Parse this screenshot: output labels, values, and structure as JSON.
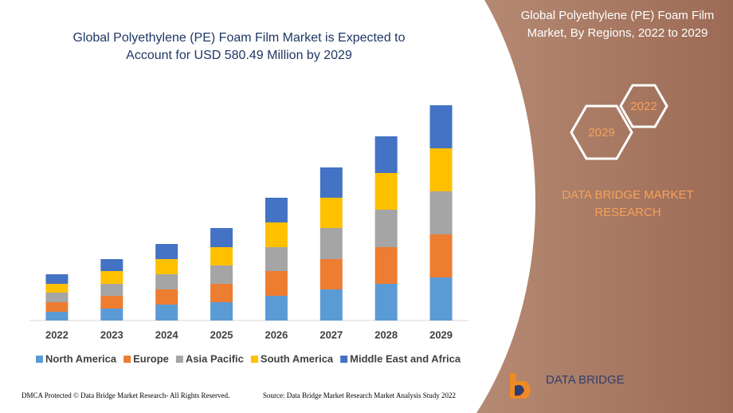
{
  "chart_data": {
    "type": "stacked-bar",
    "title": "Global Polyethylene (PE) Foam Film Market is Expected to Account for USD 580.49 Million by 2029",
    "categories": [
      "2022",
      "2023",
      "2024",
      "2025",
      "2026",
      "2027",
      "2028",
      "2029"
    ],
    "series": [
      {
        "name": "North America",
        "color": "#5b9bd5",
        "values": [
          11,
          15,
          20,
          23,
          31,
          39,
          46,
          54
        ]
      },
      {
        "name": "Europe",
        "color": "#ed7d31",
        "values": [
          12,
          16,
          19,
          23,
          31,
          38,
          46,
          54
        ]
      },
      {
        "name": "Asia Pacific",
        "color": "#a5a5a5",
        "values": [
          12,
          15,
          19,
          23,
          30,
          39,
          47,
          54
        ]
      },
      {
        "name": "South America",
        "color": "#ffc000",
        "values": [
          11,
          16,
          19,
          23,
          31,
          38,
          46,
          54
        ]
      },
      {
        "name": "Middle East and Africa",
        "color": "#4472c4",
        "values": [
          12,
          15,
          19,
          24,
          31,
          38,
          46,
          54
        ]
      }
    ],
    "legend": "bottom"
  },
  "panel": {
    "title": "Global Polyethylene (PE) Foam Film Market, By Regions, 2022 to 2029",
    "hex_right": "2022",
    "hex_left": "2029",
    "brand": "DATA BRIDGE MARKET RESEARCH",
    "logo": "DATA BRIDGE"
  },
  "footer": {
    "left": "DMCA Protected © Data Bridge Market Research- All Rights Reserved.",
    "right": "Source: Data Bridge Market Research Market Analysis Study 2022"
  }
}
